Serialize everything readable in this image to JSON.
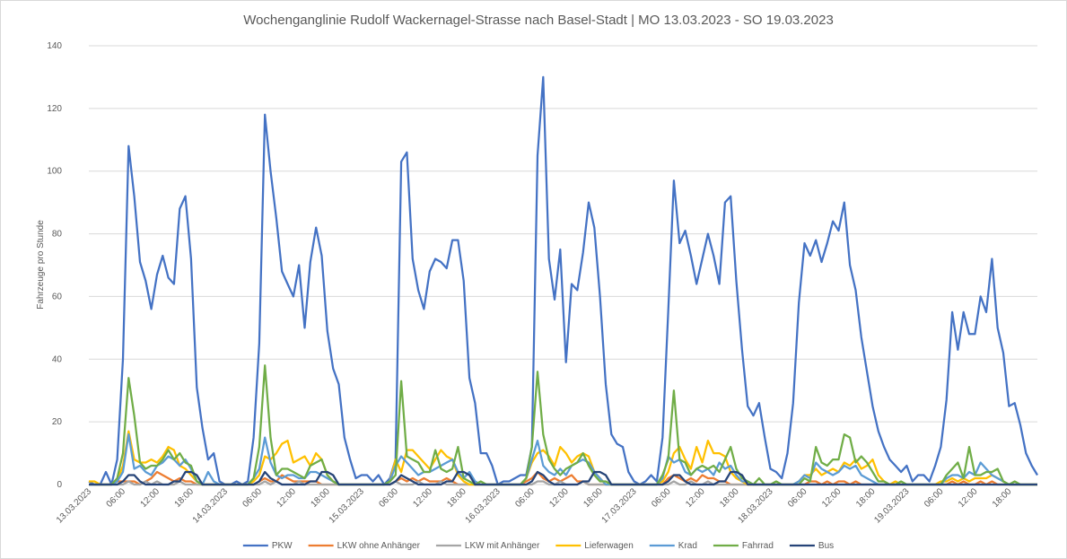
{
  "chart_data": {
    "type": "line",
    "title": "Wochenganglinie Rudolf Wackernagel-Strasse nach Basel-Stadt | MO 13.03.2023 - SO 19.03.2023",
    "y_label": "Fahrzeuge pro Stunde",
    "categories": [
      "13.03.2023",
      null,
      null,
      null,
      null,
      null,
      "06:00",
      null,
      null,
      null,
      null,
      null,
      "12:00",
      null,
      null,
      null,
      null,
      null,
      "18:00",
      null,
      null,
      null,
      null,
      null,
      "14.03.2023",
      null,
      null,
      null,
      null,
      null,
      "06:00",
      null,
      null,
      null,
      null,
      null,
      "12:00",
      null,
      null,
      null,
      null,
      null,
      "18:00",
      null,
      null,
      null,
      null,
      null,
      "15.03.2023",
      null,
      null,
      null,
      null,
      null,
      "06:00",
      null,
      null,
      null,
      null,
      null,
      "12:00",
      null,
      null,
      null,
      null,
      null,
      "18:00",
      null,
      null,
      null,
      null,
      null,
      "16.03.2023",
      null,
      null,
      null,
      null,
      null,
      "06:00",
      null,
      null,
      null,
      null,
      null,
      "12:00",
      null,
      null,
      null,
      null,
      null,
      "18:00",
      null,
      null,
      null,
      null,
      null,
      "17.03.2023",
      null,
      null,
      null,
      null,
      null,
      "06:00",
      null,
      null,
      null,
      null,
      null,
      "12:00",
      null,
      null,
      null,
      null,
      null,
      "18:00",
      null,
      null,
      null,
      null,
      null,
      "18.03.2023",
      null,
      null,
      null,
      null,
      null,
      "06:00",
      null,
      null,
      null,
      null,
      null,
      "12:00",
      null,
      null,
      null,
      null,
      null,
      "18:00",
      null,
      null,
      null,
      null,
      null,
      "19.03.2023",
      null,
      null,
      null,
      null,
      null,
      "06:00",
      null,
      null,
      null,
      null,
      null,
      "12:00",
      null,
      null,
      null,
      null,
      null,
      "18:00",
      null,
      null,
      null,
      null,
      null
    ],
    "ylim": [
      0,
      140
    ],
    "yticks": [
      0,
      20,
      40,
      60,
      80,
      100,
      120,
      140
    ],
    "grid": true,
    "legend": "bottom",
    "series": [
      {
        "name": "PKW",
        "color": "#4472c4",
        "values": [
          1,
          0,
          0,
          4,
          0,
          8,
          40,
          108,
          92,
          71,
          65,
          56,
          67,
          73,
          66,
          64,
          88,
          92,
          72,
          31,
          18,
          8,
          10,
          1,
          0,
          0,
          1,
          0,
          1,
          15,
          45,
          118,
          100,
          85,
          68,
          64,
          60,
          70,
          50,
          71,
          82,
          73,
          49,
          37,
          32,
          15,
          8,
          2,
          3,
          3,
          1,
          3,
          0,
          2,
          8,
          103,
          106,
          72,
          62,
          56,
          68,
          72,
          71,
          69,
          78,
          78,
          65,
          34,
          26,
          10,
          10,
          6,
          0,
          1,
          1,
          2,
          3,
          3,
          12,
          105,
          130,
          72,
          59,
          75,
          39,
          64,
          62,
          74,
          90,
          82,
          60,
          32,
          16,
          13,
          12,
          4,
          1,
          0,
          1,
          3,
          1,
          15,
          55,
          97,
          77,
          81,
          73,
          64,
          72,
          80,
          73,
          64,
          90,
          92,
          65,
          43,
          25,
          22,
          26,
          15,
          5,
          4,
          2,
          10,
          26,
          58,
          77,
          73,
          78,
          71,
          77,
          84,
          81,
          90,
          70,
          62,
          47,
          36,
          25,
          17,
          12,
          8,
          6,
          4,
          6,
          1,
          3,
          3,
          1,
          6,
          12,
          27,
          55,
          43,
          55,
          48,
          48,
          60,
          55,
          72,
          50,
          42,
          25,
          26,
          19,
          10,
          6,
          3
        ]
      },
      {
        "name": "LKW ohne Anhänger",
        "color": "#ed7d31",
        "values": [
          0,
          0,
          0,
          0,
          0,
          1,
          1,
          1,
          1,
          0,
          1,
          2,
          4,
          3,
          2,
          1,
          2,
          1,
          1,
          0,
          0,
          0,
          0,
          0,
          0,
          0,
          0,
          0,
          0,
          0,
          1,
          2,
          1,
          1,
          3,
          2,
          1,
          1,
          1,
          1,
          1,
          0,
          0,
          0,
          0,
          0,
          0,
          0,
          0,
          0,
          0,
          0,
          0,
          0,
          1,
          2,
          1,
          2,
          1,
          2,
          1,
          1,
          1,
          2,
          1,
          0,
          0,
          0,
          0,
          0,
          0,
          0,
          0,
          0,
          0,
          0,
          0,
          1,
          2,
          4,
          2,
          1,
          2,
          1,
          2,
          3,
          1,
          1,
          0,
          0,
          0,
          0,
          0,
          0,
          0,
          0,
          0,
          0,
          0,
          0,
          0,
          0,
          2,
          3,
          2,
          1,
          2,
          1,
          3,
          2,
          2,
          1,
          1,
          0,
          0,
          0,
          0,
          0,
          0,
          0,
          0,
          0,
          0,
          0,
          0,
          0,
          0,
          1,
          1,
          0,
          1,
          0,
          1,
          1,
          0,
          1,
          0,
          0,
          0,
          0,
          0,
          0,
          0,
          0,
          0,
          0,
          0,
          0,
          0,
          0,
          0,
          0,
          1,
          0,
          1,
          0,
          0,
          1,
          0,
          1,
          0,
          0,
          0,
          0,
          0,
          0,
          0,
          0
        ]
      },
      {
        "name": "LKW mit Anhänger",
        "color": "#a5a5a5",
        "values": [
          0,
          0,
          0,
          0,
          0,
          0,
          0,
          1,
          0,
          0,
          1,
          0,
          1,
          0,
          0,
          0,
          1,
          0,
          0,
          0,
          0,
          0,
          0,
          0,
          0,
          0,
          0,
          0,
          0,
          0,
          0,
          1,
          0,
          1,
          0,
          0,
          0,
          1,
          0,
          0,
          0,
          0,
          0,
          0,
          0,
          0,
          0,
          0,
          0,
          0,
          0,
          0,
          0,
          0,
          1,
          0,
          0,
          0,
          1,
          0,
          0,
          0,
          1,
          0,
          0,
          0,
          0,
          0,
          0,
          0,
          0,
          0,
          0,
          0,
          0,
          0,
          0,
          0,
          0,
          1,
          1,
          0,
          0,
          1,
          0,
          0,
          0,
          1,
          0,
          0,
          0,
          0,
          0,
          0,
          0,
          0,
          0,
          0,
          0,
          0,
          0,
          0,
          0,
          1,
          0,
          0,
          1,
          0,
          0,
          1,
          0,
          0,
          0,
          0,
          0,
          0,
          0,
          0,
          0,
          0,
          0,
          0,
          0,
          0,
          0,
          0,
          0,
          0,
          0,
          0,
          0,
          0,
          0,
          0,
          0,
          0,
          0,
          0,
          0,
          0,
          0,
          0,
          0,
          0,
          0,
          0,
          0,
          0,
          0,
          0,
          0,
          0,
          0,
          0,
          0,
          0,
          0,
          0,
          0,
          0,
          0,
          0,
          0,
          0,
          0,
          0,
          0,
          0
        ]
      },
      {
        "name": "Lieferwagen",
        "color": "#ffc000",
        "values": [
          1,
          1,
          0,
          0,
          0,
          1,
          6,
          17,
          8,
          7,
          7,
          8,
          7,
          9,
          12,
          11,
          6,
          5,
          3,
          1,
          0,
          0,
          0,
          0,
          0,
          0,
          0,
          0,
          0,
          1,
          3,
          9,
          8,
          10,
          13,
          14,
          7,
          8,
          9,
          6,
          10,
          8,
          3,
          1,
          0,
          0,
          0,
          0,
          0,
          0,
          0,
          0,
          0,
          1,
          8,
          4,
          11,
          11,
          9,
          7,
          5,
          8,
          11,
          9,
          8,
          3,
          1,
          0,
          0,
          0,
          0,
          0,
          0,
          0,
          0,
          0,
          0,
          2,
          7,
          10,
          11,
          9,
          6,
          12,
          10,
          7,
          9,
          10,
          9,
          4,
          2,
          0,
          0,
          0,
          0,
          0,
          0,
          0,
          0,
          0,
          0,
          1,
          4,
          10,
          12,
          8,
          5,
          12,
          7,
          14,
          10,
          10,
          9,
          4,
          2,
          1,
          0,
          0,
          0,
          0,
          0,
          0,
          0,
          0,
          0,
          1,
          3,
          3,
          5,
          3,
          4,
          5,
          4,
          7,
          6,
          8,
          5,
          6,
          8,
          3,
          1,
          0,
          1,
          0,
          0,
          0,
          0,
          0,
          0,
          0,
          1,
          1,
          2,
          1,
          2,
          1,
          2,
          2,
          2,
          3,
          2,
          1,
          0,
          0,
          0,
          0,
          0,
          0
        ]
      },
      {
        "name": "Krad",
        "color": "#5b9bd5",
        "values": [
          0,
          0,
          0,
          0,
          0,
          1,
          4,
          16,
          5,
          6,
          4,
          3,
          6,
          7,
          9,
          8,
          6,
          8,
          5,
          1,
          0,
          4,
          1,
          0,
          0,
          0,
          0,
          0,
          0,
          2,
          5,
          15,
          7,
          3,
          2,
          3,
          3,
          2,
          2,
          4,
          4,
          3,
          2,
          1,
          0,
          0,
          0,
          0,
          0,
          0,
          0,
          0,
          0,
          1,
          6,
          9,
          7,
          5,
          3,
          4,
          4,
          5,
          6,
          7,
          8,
          4,
          2,
          4,
          1,
          0,
          0,
          0,
          0,
          0,
          0,
          0,
          0,
          2,
          8,
          14,
          6,
          4,
          3,
          5,
          3,
          6,
          7,
          8,
          7,
          4,
          2,
          0,
          0,
          0,
          0,
          0,
          0,
          0,
          0,
          0,
          0,
          2,
          9,
          7,
          8,
          4,
          3,
          5,
          4,
          5,
          3,
          7,
          5,
          6,
          3,
          1,
          1,
          0,
          0,
          0,
          0,
          0,
          0,
          0,
          0,
          1,
          3,
          2,
          7,
          5,
          4,
          3,
          4,
          6,
          5,
          6,
          3,
          2,
          1,
          0,
          0,
          0,
          0,
          0,
          0,
          0,
          0,
          0,
          0,
          0,
          0,
          2,
          3,
          3,
          2,
          4,
          3,
          7,
          5,
          3,
          2,
          1,
          0,
          0,
          0,
          0,
          0,
          0
        ]
      },
      {
        "name": "Fahrrad",
        "color": "#70ad47",
        "values": [
          0,
          0,
          0,
          0,
          0,
          2,
          10,
          34,
          22,
          7,
          5,
          6,
          6,
          8,
          11,
          8,
          10,
          7,
          6,
          1,
          0,
          0,
          0,
          0,
          0,
          0,
          0,
          0,
          0,
          2,
          12,
          38,
          15,
          3,
          5,
          5,
          4,
          3,
          2,
          6,
          7,
          8,
          3,
          1,
          0,
          0,
          0,
          0,
          0,
          0,
          0,
          0,
          0,
          1,
          3,
          33,
          9,
          8,
          7,
          4,
          4,
          11,
          5,
          4,
          5,
          12,
          2,
          1,
          0,
          1,
          0,
          0,
          0,
          0,
          0,
          0,
          0,
          2,
          12,
          36,
          16,
          8,
          5,
          3,
          5,
          6,
          7,
          10,
          6,
          3,
          1,
          1,
          0,
          0,
          0,
          0,
          0,
          0,
          0,
          0,
          0,
          3,
          8,
          30,
          8,
          7,
          3,
          5,
          6,
          5,
          6,
          4,
          8,
          12,
          5,
          2,
          1,
          0,
          2,
          0,
          0,
          1,
          0,
          0,
          0,
          0,
          2,
          1,
          12,
          7,
          6,
          8,
          8,
          16,
          15,
          7,
          9,
          7,
          4,
          1,
          1,
          0,
          0,
          1,
          0,
          0,
          0,
          0,
          0,
          0,
          0,
          3,
          5,
          7,
          2,
          12,
          3,
          3,
          4,
          4,
          5,
          1,
          0,
          1,
          0,
          0,
          0,
          0
        ]
      },
      {
        "name": "Bus",
        "color": "#264478",
        "values": [
          0,
          0,
          0,
          0,
          0,
          0,
          1,
          3,
          3,
          1,
          0,
          0,
          0,
          0,
          0,
          1,
          1,
          4,
          4,
          3,
          0,
          0,
          0,
          0,
          0,
          0,
          0,
          0,
          0,
          0,
          1,
          4,
          2,
          1,
          0,
          0,
          0,
          0,
          0,
          1,
          1,
          4,
          4,
          3,
          0,
          0,
          0,
          0,
          0,
          0,
          0,
          0,
          0,
          0,
          1,
          3,
          2,
          1,
          0,
          0,
          0,
          0,
          0,
          1,
          1,
          4,
          4,
          3,
          0,
          0,
          0,
          0,
          0,
          0,
          0,
          0,
          0,
          0,
          1,
          4,
          3,
          1,
          0,
          0,
          0,
          0,
          0,
          1,
          1,
          4,
          4,
          3,
          0,
          0,
          0,
          0,
          0,
          0,
          0,
          0,
          0,
          0,
          1,
          3,
          3,
          1,
          0,
          0,
          0,
          0,
          0,
          1,
          1,
          4,
          4,
          3,
          0,
          0,
          0,
          0,
          0,
          0,
          0,
          0,
          0,
          0,
          0,
          0,
          0,
          0,
          0,
          0,
          0,
          0,
          0,
          0,
          0,
          0,
          0,
          0,
          0,
          0,
          0,
          0,
          0,
          0,
          0,
          0,
          0,
          0,
          0,
          0,
          0,
          0,
          0,
          0,
          0,
          0,
          0,
          0,
          0,
          0,
          0,
          0,
          0,
          0,
          0,
          0
        ]
      }
    ]
  }
}
